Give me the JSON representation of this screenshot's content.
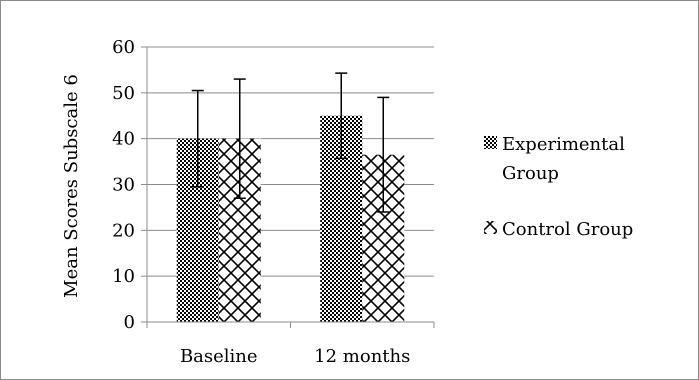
{
  "chart_data": {
    "type": "bar",
    "title": "",
    "xlabel": "",
    "ylabel": "Mean Scores Subscale 6",
    "ylim": [
      0,
      60
    ],
    "yticks": [
      0,
      10,
      20,
      30,
      40,
      50,
      60
    ],
    "categories": [
      "Baseline",
      "12 months"
    ],
    "series": [
      {
        "name": "Experimental Group",
        "values": [
          40,
          45
        ],
        "error": [
          10.5,
          9.3
        ],
        "pattern": "checker"
      },
      {
        "name": "Control Group",
        "values": [
          40,
          36.5
        ],
        "error": [
          13,
          12.5
        ],
        "pattern": "crosshatch"
      }
    ],
    "grid": true,
    "legend_position": "right",
    "error_bars": true
  }
}
